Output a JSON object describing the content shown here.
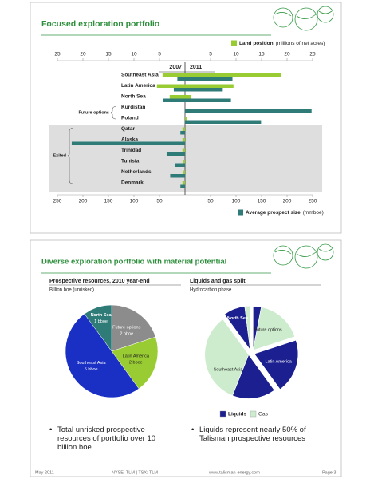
{
  "slides": [
    {
      "title": "Focused exploration portfolio"
    },
    {
      "title": "Diverse exploration portfolio with material potential",
      "bullets": [
        "Total unrisked prospective resources of portfolio over 10 billion boe",
        "Liquids represent nearly 50% of Talisman prospective resources"
      ],
      "footer": [
        "May 2011",
        "NYSE: TLM | TSX: TLM",
        "www.talisman-energy.com",
        "Page 3"
      ]
    }
  ],
  "chart_data": [
    {
      "type": "butterfly",
      "periods": [
        "2007",
        "2011"
      ],
      "categories": [
        "Southeast Asia",
        "Latin America",
        "North Sea",
        "Kurdistan",
        "Poland",
        "Qatar",
        "Alaska",
        "Trinidad",
        "Tunisia",
        "Netherlands",
        "Denmark"
      ],
      "group_labels": [
        "Future options",
        "Exited"
      ],
      "series": [
        {
          "name": "Land position",
          "unit": "(millions of net acres)",
          "color": "#99cc33",
          "axis": "top",
          "values": [
            [
              4.4,
              5.5,
              3,
              0,
              0,
              0.5,
              0.5,
              0.5,
              0.3,
              0.3,
              0.5
            ],
            [
              18.8,
              9.5,
              1.2,
              0,
              0.3,
              0,
              0,
              0,
              0,
              0,
              0
            ]
          ]
        },
        {
          "name": "Average prospect size",
          "unit": "(mmboe)",
          "color": "#2e7b78",
          "axis": "bottom",
          "values": [
            [
              15,
              22,
              43,
              0,
              0,
              9,
              222,
              36,
              19,
              29,
              9
            ],
            [
              93,
              74,
              90,
              248,
              149,
              0,
              0,
              0,
              0,
              0,
              0
            ]
          ]
        }
      ],
      "top_xlim": [
        0,
        25
      ],
      "top_xticks": [
        [
          25,
          20,
          15,
          10,
          5
        ],
        [
          5,
          10,
          15,
          20,
          25
        ]
      ],
      "bottom_xlim": [
        0,
        250
      ],
      "bottom_xticks": [
        [
          250,
          200,
          150,
          100,
          50
        ],
        [
          50,
          100,
          150,
          200,
          250
        ]
      ]
    },
    {
      "type": "pie",
      "title": "Prospective resources, 2010 year-end",
      "subtitle": "Billion boe (unrisked)",
      "categories": [
        "Future options",
        "Latin America",
        "Southeast Asia",
        "North Sea"
      ],
      "values": [
        2,
        2,
        5,
        1
      ],
      "value_labels": [
        "2 bboe",
        "2 bboe",
        "5 bboe",
        "1 bboe"
      ],
      "colors": [
        "#8c8c8c",
        "#99cc33",
        "#1a2fc4",
        "#2e7b78"
      ]
    },
    {
      "type": "exploded_pie",
      "title": "Liquids and gas split",
      "subtitle": "Hydrocarbon phase",
      "categories": [
        "Future options",
        "Latin America",
        "Southeast Asia",
        "North Sea"
      ],
      "series": [
        {
          "name": "Liquids",
          "color": "#1b1f8f",
          "values": [
            0.3,
            2,
            1.6,
            0.8
          ]
        },
        {
          "name": "Gas",
          "color": "#cdeccd",
          "values": [
            1.7,
            0,
            3.4,
            0.2
          ]
        }
      ]
    }
  ]
}
